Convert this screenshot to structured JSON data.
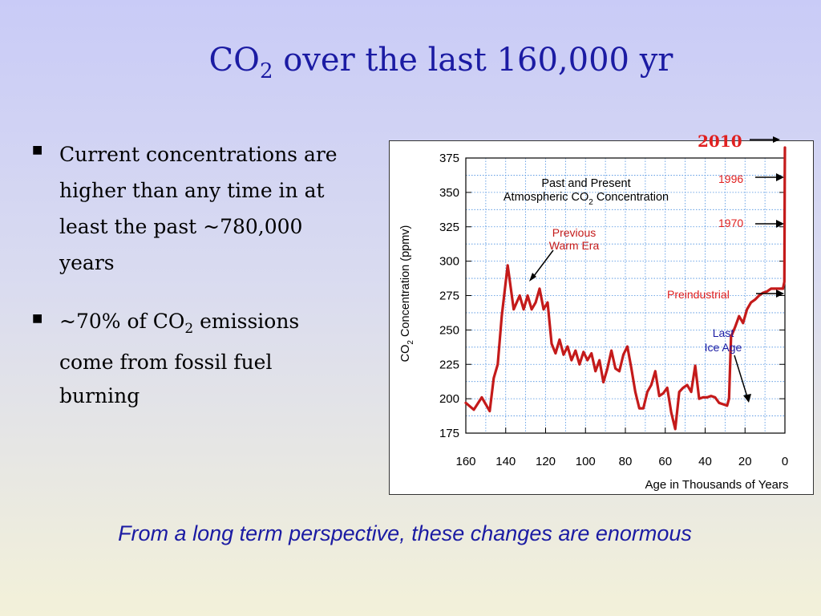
{
  "slide": {
    "title_main": "CO",
    "title_sub": "2",
    "title_rest": " over the last 160,000 yr",
    "caption": "From a long term perspective, these changes are enormous"
  },
  "bullets": [
    {
      "parts": [
        "Current concentrations are higher than any time in at least the past ~780,000 years"
      ]
    },
    {
      "before": "~70% of CO",
      "sub": "2",
      "after": " emissions come from fossil fuel burning"
    }
  ],
  "chart_data": {
    "type": "line",
    "title_line1": "Past and Present",
    "title_line2_main": "Atmospheric CO",
    "title_line2_sub": "2",
    "title_line2_rest": " Concentration",
    "xlabel": "Age in Thousands of Years",
    "ylabel_main": "CO",
    "ylabel_sub": "2",
    "ylabel_rest": " Concentration (ppmv)",
    "xlim": [
      160,
      0
    ],
    "ylim": [
      175,
      375
    ],
    "x_ticks": [
      160,
      140,
      120,
      100,
      80,
      60,
      40,
      20,
      0
    ],
    "y_ticks": [
      175,
      200,
      225,
      250,
      275,
      300,
      325,
      350,
      375
    ],
    "grid": true,
    "color": "#c41a1a",
    "series": [
      {
        "x": [
          160,
          156,
          152,
          148,
          146,
          144,
          142,
          139,
          136,
          133,
          131,
          129,
          127,
          125,
          123,
          121,
          119,
          117,
          115,
          113,
          111,
          109,
          107,
          105,
          103,
          101,
          99,
          97,
          95,
          93,
          91,
          89,
          87,
          85,
          83,
          81,
          79,
          77,
          75,
          73,
          71,
          69,
          67,
          65,
          63,
          61,
          59,
          57,
          55,
          53,
          51,
          49,
          47,
          45,
          43,
          41,
          39,
          37,
          35,
          33,
          31,
          29,
          28,
          27,
          25,
          23,
          21,
          19,
          17,
          15,
          13,
          11,
          9,
          7,
          5,
          3,
          1
        ],
        "y": [
          197,
          192,
          201,
          191,
          215,
          225,
          260,
          297,
          265,
          275,
          265,
          275,
          265,
          270,
          280,
          265,
          270,
          240,
          233,
          243,
          232,
          238,
          228,
          235,
          225,
          234,
          228,
          233,
          220,
          228,
          212,
          222,
          235,
          222,
          220,
          232,
          238,
          222,
          205,
          193,
          193,
          205,
          210,
          220,
          202,
          204,
          208,
          190,
          178,
          205,
          208,
          210,
          205,
          224,
          200,
          201,
          201,
          202,
          201,
          197,
          196,
          195,
          200,
          245,
          252,
          260,
          255,
          265,
          270,
          272,
          275,
          277,
          278,
          280,
          280,
          280,
          280
        ]
      },
      {
        "x": [
          1,
          0.3,
          0.2,
          0.1,
          0
        ],
        "y": [
          280,
          285,
          315,
          362,
          389
        ]
      }
    ],
    "annotations": [
      {
        "label": "Previous",
        "label2": "Warm Era",
        "color": "#c41a1a"
      },
      {
        "label": "1996",
        "color": "#e02020"
      },
      {
        "label": "1970",
        "color": "#e02020"
      },
      {
        "label": "Preindustrial",
        "color": "#e02020"
      },
      {
        "label": "Last",
        "label2": "Ice Age",
        "color": "#1b1ba3"
      },
      {
        "label": "2010",
        "color": "#e02020"
      }
    ]
  }
}
